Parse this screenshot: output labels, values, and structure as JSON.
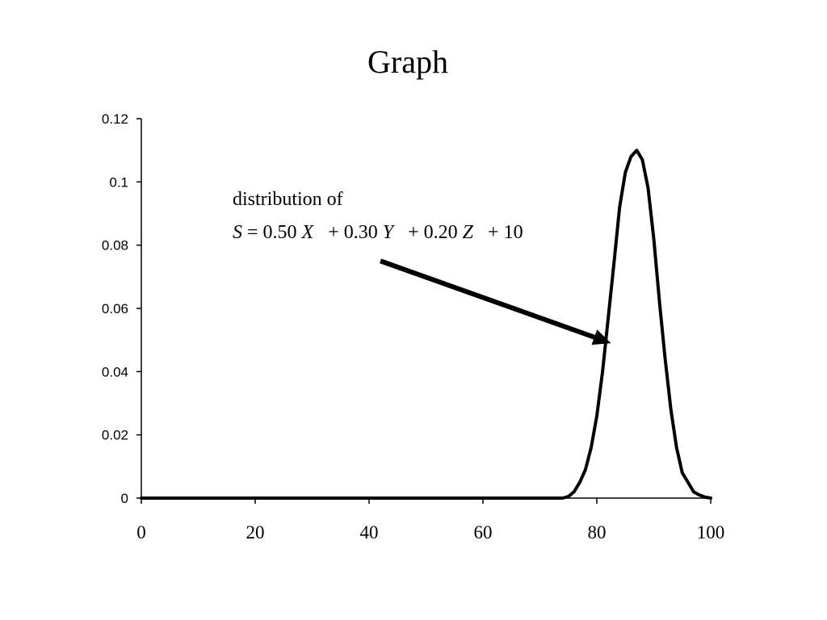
{
  "chart_data": {
    "type": "line",
    "title": "Graph",
    "xlabel": "",
    "ylabel": "",
    "xlim": [
      0,
      100
    ],
    "ylim": [
      0,
      0.12
    ],
    "xticks": [
      "0",
      "20",
      "40",
      "60",
      "80",
      "100"
    ],
    "yticks": [
      "0",
      "0.02",
      "0.04",
      "0.06",
      "0.08",
      "0.1",
      "0.12"
    ],
    "grid": false,
    "legend": "none",
    "line_color": "#000000",
    "series": [
      {
        "x": [
          0,
          10,
          20,
          30,
          40,
          50,
          60,
          70,
          74,
          75,
          76,
          77,
          78,
          79,
          80,
          81,
          82,
          83,
          84,
          85,
          86,
          87,
          88,
          89,
          90,
          91,
          92,
          93,
          94,
          95,
          96,
          97,
          98,
          99,
          100
        ],
        "values": [
          0,
          0,
          0,
          0,
          0,
          0,
          0,
          0,
          0,
          0.0005,
          0.002,
          0.005,
          0.009,
          0.016,
          0.026,
          0.04,
          0.057,
          0.074,
          0.092,
          0.103,
          0.108,
          0.11,
          0.107,
          0.098,
          0.082,
          0.062,
          0.044,
          0.028,
          0.016,
          0.008,
          0.005,
          0.002,
          0.001,
          0.0003,
          0
        ]
      }
    ],
    "annotation": {
      "line1": "distribution of",
      "S": "S",
      "eq1": " = 0.50 ",
      "X": "X",
      "eq2": "   + 0.30 ",
      "Y": "Y",
      "eq3": "   + 0.20 ",
      "Z": "Z",
      "eq4": "   + 10",
      "arrow_from": [
        42,
        0.075
      ],
      "arrow_to": [
        82.5,
        0.049
      ]
    }
  }
}
